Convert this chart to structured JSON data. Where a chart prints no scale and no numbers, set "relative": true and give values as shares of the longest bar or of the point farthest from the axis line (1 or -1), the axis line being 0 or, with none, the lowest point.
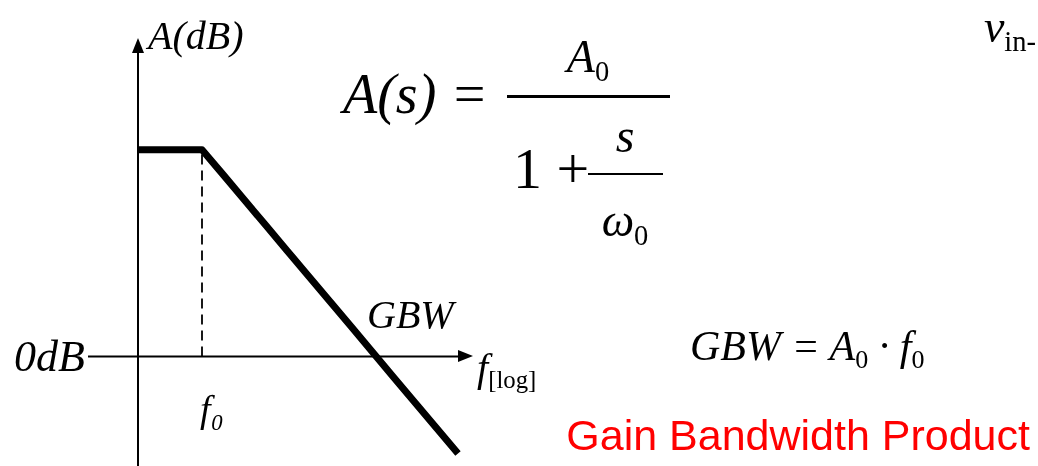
{
  "chart_data": {
    "type": "line",
    "relative": true,
    "categories": [
      null,
      null,
      null,
      null,
      null,
      null,
      null,
      null,
      null,
      null,
      null,
      null,
      null,
      null,
      null,
      null
    ],
    "series": [
      {
        "color": "#000000",
        "values": [
          1,
          1,
          1,
          1,
          0.878,
          0.755,
          0.633,
          0.51,
          0.388,
          0.265,
          0.143,
          0.02,
          -0.103,
          -0.225,
          -0.348,
          -0.47
        ]
      }
    ],
    "xlabel": "f$_{[log]}$",
    "ylabel": "A(dB)",
    "annotations": [
      "0dB",
      "f₀",
      "GBW",
      "A(s) =",
      "A$_{0}$",
      "1 +",
      "s",
      "ω$_{0}$",
      "GBW = A$_{0}$ · f$_{0}$",
      "Gain Bandwidth Product",
      "v$_{in-}$"
    ],
    "marker": "none",
    "line_style": "solid"
  }
}
